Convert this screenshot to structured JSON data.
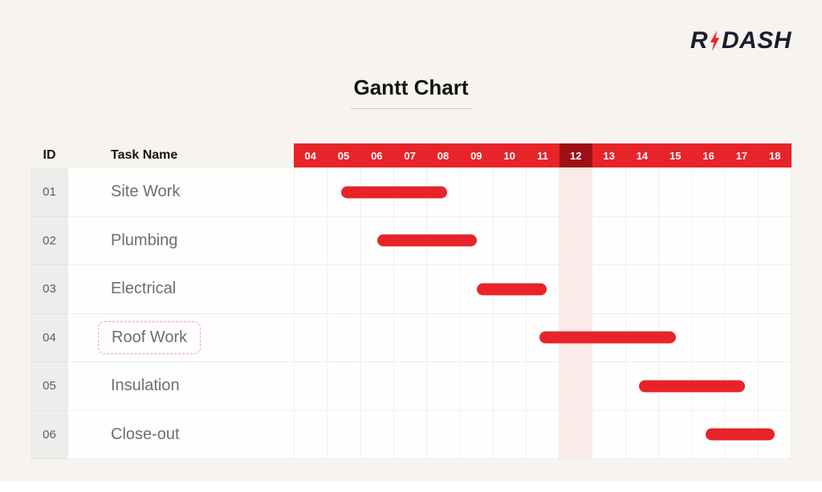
{
  "logo": {
    "text_r": "R",
    "text_dash": "DASH"
  },
  "title": "Gantt Chart",
  "table": {
    "id_header": "ID",
    "task_header": "Task Name"
  },
  "chart_data": {
    "type": "bar",
    "subtype": "gantt",
    "title": "Gantt Chart",
    "x_ticks": [
      "04",
      "05",
      "06",
      "07",
      "08",
      "09",
      "10",
      "11",
      "12",
      "13",
      "14",
      "15",
      "16",
      "17",
      "18"
    ],
    "highlighted_tick": "12",
    "highlighted_task": "Roof Work",
    "tasks": [
      {
        "id": "01",
        "name": "Site Work",
        "start_day": 5.4,
        "end_day": 8.6
      },
      {
        "id": "02",
        "name": "Plumbing",
        "start_day": 6.5,
        "end_day": 9.5
      },
      {
        "id": "03",
        "name": "Electrical",
        "start_day": 9.5,
        "end_day": 11.6
      },
      {
        "id": "04",
        "name": "Roof Work",
        "start_day": 11.4,
        "end_day": 15.5
      },
      {
        "id": "05",
        "name": "Insulation",
        "start_day": 14.4,
        "end_day": 17.6
      },
      {
        "id": "06",
        "name": "Close-out",
        "start_day": 16.4,
        "end_day": 18.5
      }
    ]
  },
  "colors": {
    "red": "#e7242a",
    "dark_red": "#9e1015",
    "column_highlight": "#fbeae8",
    "background": "#f7f4ef"
  }
}
